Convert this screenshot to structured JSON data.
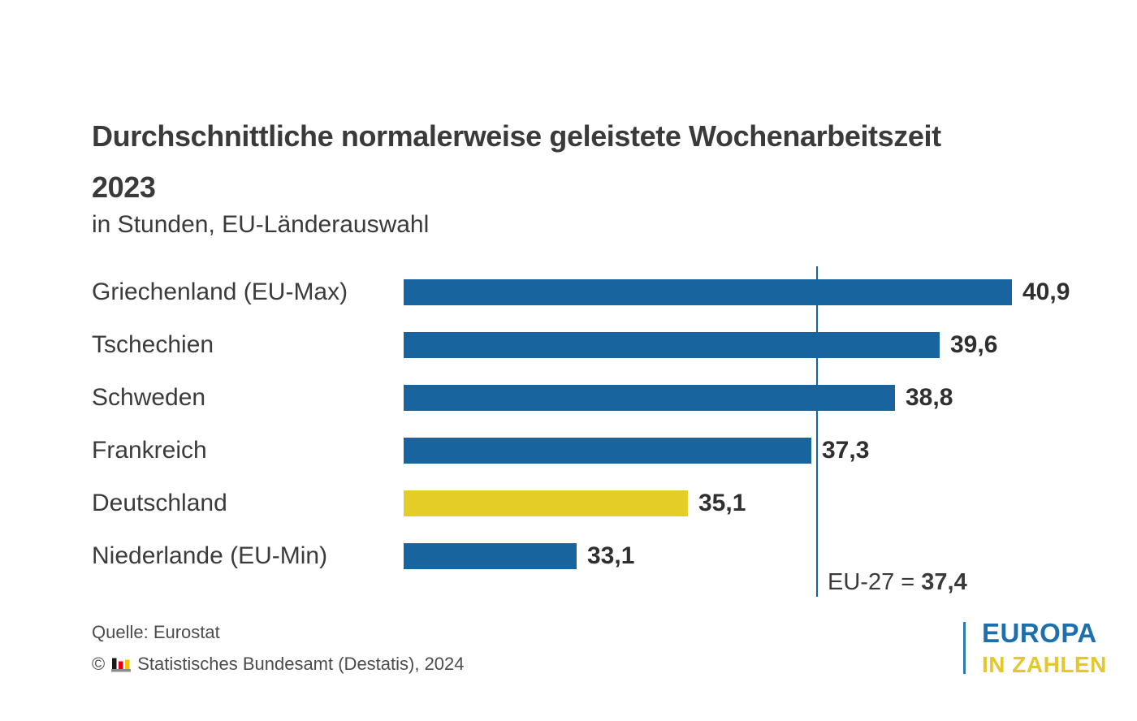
{
  "title": {
    "main": "Durchschnittliche normalerweise geleistete Wochenarbeitszeit",
    "year": "2023",
    "subtitle": "in Stunden, EU-Länderauswahl"
  },
  "chart_data": {
    "type": "bar",
    "orientation": "horizontal",
    "title": "Durchschnittliche normalerweise geleistete Wochenarbeitszeit 2023",
    "subtitle": "in Stunden, EU-Länderauswahl",
    "categories": [
      "Griechenland (EU-Max)",
      "Tschechien",
      "Schweden",
      "Frankreich",
      "Deutschland",
      "Niederlande (EU-Min)"
    ],
    "values": [
      40.9,
      39.6,
      38.8,
      37.3,
      35.1,
      33.1
    ],
    "value_labels": [
      "40,9",
      "39,6",
      "38,8",
      "37,3",
      "35,1",
      "33,1"
    ],
    "xlim": [
      30,
      41.3
    ],
    "grid": false,
    "legend": false,
    "bar_color": "#17649e",
    "highlight_index": 4,
    "highlight_color": "#e3cd26",
    "reference_line": {
      "label": "EU-27 = ",
      "value": 37.4,
      "value_label": "37,4",
      "color": "#17649e"
    }
  },
  "footer": {
    "source": "Quelle: Eurostat",
    "copyright_symbol": "©",
    "copyright_text": "Statistisches Bundesamt (Destatis), 2024",
    "icon_colors": {
      "black": "#1a1a1a",
      "red": "#e3001b",
      "gold": "#f5c400",
      "base": "#8c8c8c"
    }
  },
  "brand": {
    "line1": "EUROPA",
    "line2": "IN ZAHLEN",
    "blue": "#1d6fad",
    "yellow": "#e4c72b"
  }
}
